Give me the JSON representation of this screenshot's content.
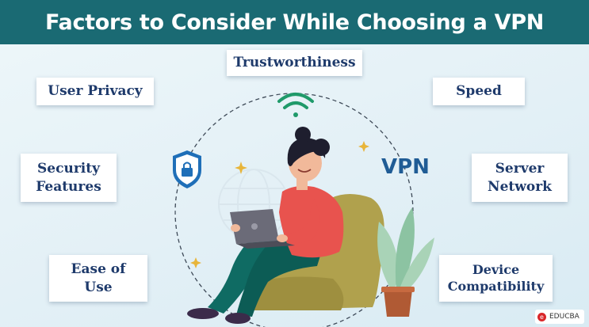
{
  "title": "Factors to Consider While Choosing a VPN",
  "factors": {
    "trustworthiness": "Trustworthiness",
    "user_privacy": "User Privacy",
    "speed": "Speed",
    "security_features": [
      "Security",
      "Features"
    ],
    "server_network": [
      "Server",
      "Network"
    ],
    "ease_of_use": [
      "Ease of",
      "Use"
    ],
    "device_compatibility": [
      "Device",
      "Compatibility"
    ]
  },
  "vpn_label": "VPN",
  "brand": "EDUCBA",
  "colors": {
    "title_bar": "#1a6a73",
    "box_text": "#1e3a6b",
    "accent_green": "#1f9a6a",
    "shield_blue": "#1f6fb8",
    "sweater": "#e8534e",
    "pants": "#0f6b63",
    "chair": "#b0a14d"
  },
  "icons": [
    "wifi-icon",
    "shield-lock-icon",
    "globe-icon",
    "sparkle-icon",
    "plant-icon",
    "laptop-icon",
    "person-illustration"
  ]
}
